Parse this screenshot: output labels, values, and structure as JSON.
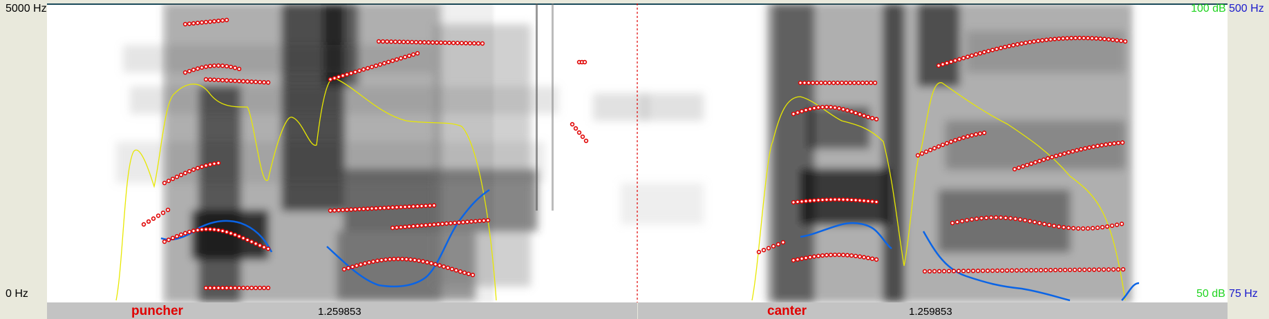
{
  "left_axis": {
    "top_label": "5000 Hz",
    "bottom_label": "0 Hz"
  },
  "right_axis": {
    "top_db": "100 dB",
    "top_hz": "500 Hz",
    "bottom_db": "50 dB",
    "bottom_hz": "75 Hz"
  },
  "colors": {
    "formant": "#e00000",
    "pitch": "#0a64e6",
    "intensity": "#e8e800",
    "cursor": "#e00000",
    "word": "#e00000"
  },
  "segments": [
    {
      "word": "puncher",
      "duration": "1.259853"
    },
    {
      "word": "canter",
      "duration": "1.259853"
    }
  ]
}
